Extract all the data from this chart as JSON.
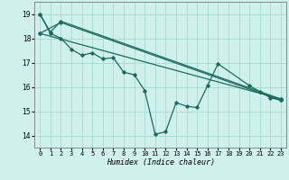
{
  "bg_color": "#cff0eb",
  "grid_color": "#aaddd8",
  "line_color": "#1a6b5e",
  "xlabel": "Humidex (Indice chaleur)",
  "xlim": [
    -0.5,
    23.5
  ],
  "ylim": [
    13.5,
    19.5
  ],
  "yticks": [
    14,
    15,
    16,
    17,
    18,
    19
  ],
  "xticks": [
    0,
    1,
    2,
    3,
    4,
    5,
    6,
    7,
    8,
    9,
    10,
    11,
    12,
    13,
    14,
    15,
    16,
    17,
    18,
    19,
    20,
    21,
    22,
    23
  ],
  "series": [
    {
      "x": [
        0,
        1,
        2,
        23
      ],
      "y": [
        19.0,
        18.25,
        18.7,
        15.5
      ]
    },
    {
      "x": [
        0,
        2,
        23
      ],
      "y": [
        18.2,
        18.65,
        15.45
      ]
    },
    {
      "x": [
        0,
        23
      ],
      "y": [
        18.2,
        15.5
      ]
    },
    {
      "x": [
        0,
        1,
        2,
        3,
        4,
        5,
        6,
        7,
        8,
        9,
        10,
        11,
        12,
        13,
        14,
        15,
        16,
        17,
        20,
        21,
        22,
        23
      ],
      "y": [
        19.0,
        18.2,
        18.0,
        17.55,
        17.3,
        17.4,
        17.15,
        17.2,
        16.6,
        16.5,
        15.85,
        14.05,
        14.15,
        15.35,
        15.2,
        15.15,
        16.05,
        16.95,
        16.05,
        15.8,
        15.55,
        15.45
      ]
    }
  ]
}
